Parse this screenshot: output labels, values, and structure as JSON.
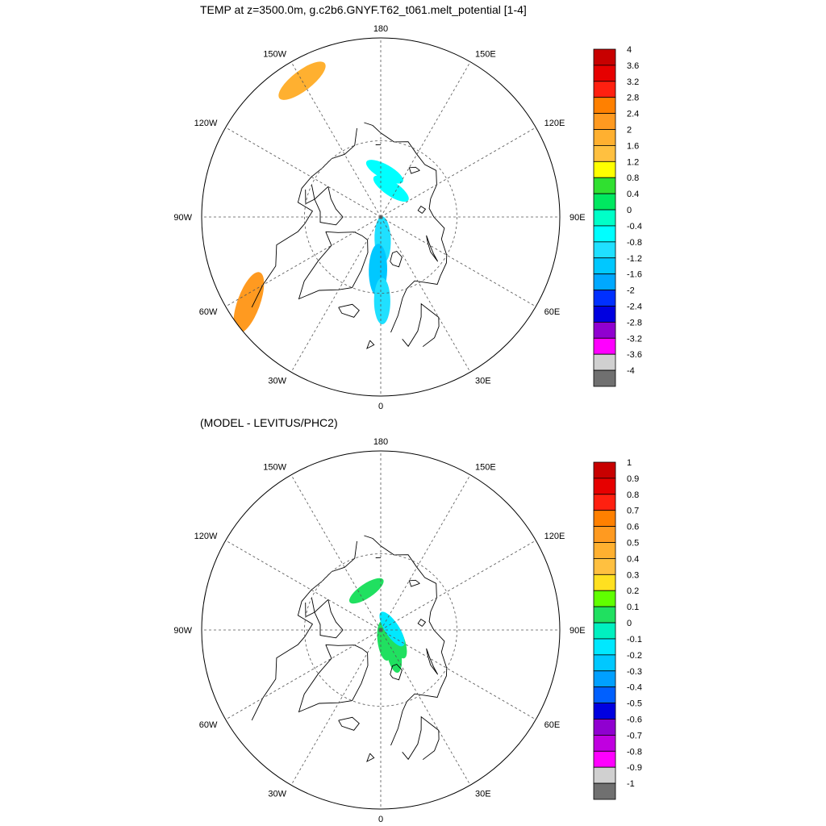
{
  "figure": {
    "title_top": "TEMP at z=3500.0m, g.c2b6.GNYF.T62_t061.melt_potential [1-4]",
    "title_bottom": "(MODEL - LEVITUS/PHC2)"
  },
  "chart_data": [
    {
      "type": "heatmap",
      "projection": "north-polar-stereographic",
      "title": "TEMP at z=3500.0m, g.c2b6.GNYF.T62_t061.melt_potential [1-4]",
      "longitude_labels": [
        "180",
        "150E",
        "120E",
        "90E",
        "60E",
        "30E",
        "0",
        "30W",
        "60W",
        "90W",
        "120W",
        "150W"
      ],
      "colorbar": {
        "labels": [
          "4",
          "3.6",
          "3.2",
          "2.8",
          "2.4",
          "2",
          "1.6",
          "1.2",
          "0.8",
          "0.4",
          "0",
          "-0.4",
          "-0.8",
          "-1.2",
          "-1.6",
          "-2",
          "-2.4",
          "-2.8",
          "-3.2",
          "-3.6",
          "-4"
        ],
        "colors": [
          "#c80000",
          "#e60000",
          "#ff2010",
          "#ff8000",
          "#ff9a20",
          "#ffb030",
          "#ffc040",
          "#ffff00",
          "#30e030",
          "#00e860",
          "#00ffc8",
          "#00ffff",
          "#20e0ff",
          "#00c8ff",
          "#00a8ff",
          "#0030ff",
          "#0000e0",
          "#9000d0",
          "#ff00ff",
          "#d0d0d0",
          "#707070"
        ]
      },
      "regions": [
        {
          "name": "north-pacific-warm-patch",
          "lon": -150,
          "lat": 50,
          "value": 1.8
        },
        {
          "name": "labrador-warm-patch",
          "lon": -57,
          "lat": 50,
          "value": 2.4
        },
        {
          "name": "canada-basin-cold-band",
          "lon": 175,
          "lat": 78,
          "value": -0.5
        },
        {
          "name": "amerasian-cold-streak",
          "lon": 160,
          "lat": 82,
          "value": -0.5
        },
        {
          "name": "lomonosov-cold-patch",
          "lon": 5,
          "lat": 84,
          "value": -0.9
        },
        {
          "name": "greenland-sea-cold-spot",
          "lon": -3,
          "lat": 76,
          "value": -1.4
        },
        {
          "name": "norwegian-sea-cold-patch",
          "lon": 1,
          "lat": 68,
          "value": -0.9
        }
      ]
    },
    {
      "type": "heatmap",
      "projection": "north-polar-stereographic",
      "title": "(MODEL - LEVITUS/PHC2)",
      "longitude_labels": [
        "180",
        "150E",
        "120E",
        "90E",
        "60E",
        "30E",
        "0",
        "30W",
        "60W",
        "90W",
        "120W",
        "150W"
      ],
      "colorbar": {
        "labels": [
          "1",
          "0.9",
          "0.8",
          "0.7",
          "0.6",
          "0.5",
          "0.4",
          "0.3",
          "0.2",
          "0.1",
          "0",
          "-0.1",
          "-0.2",
          "-0.3",
          "-0.4",
          "-0.5",
          "-0.6",
          "-0.7",
          "-0.8",
          "-0.9",
          "-1"
        ],
        "colors": [
          "#c80000",
          "#e60000",
          "#ff2010",
          "#ff8000",
          "#ff9a20",
          "#ffb030",
          "#ffc040",
          "#ffe020",
          "#60ff00",
          "#20e060",
          "#00f0c0",
          "#00e8ff",
          "#00c8ff",
          "#00a0ff",
          "#0060ff",
          "#0000e0",
          "#9000d0",
          "#c000e0",
          "#ff00ff",
          "#d0d0d0",
          "#707070"
        ]
      },
      "regions": [
        {
          "name": "canada-basin-positive-patch",
          "lon": -160,
          "lat": 79,
          "value": 0.1
        },
        {
          "name": "eurasian-basin-positive-band",
          "lon": 60,
          "lat": 85,
          "value": 0.1
        },
        {
          "name": "central-positive-patch",
          "lon": 20,
          "lat": 87,
          "value": 0.1
        },
        {
          "name": "barents-positive-streak",
          "lon": 30,
          "lat": 83,
          "value": 0.1
        },
        {
          "name": "north-pole-negative-spot",
          "lon": 95,
          "lat": 87,
          "value": -0.1
        }
      ]
    }
  ]
}
